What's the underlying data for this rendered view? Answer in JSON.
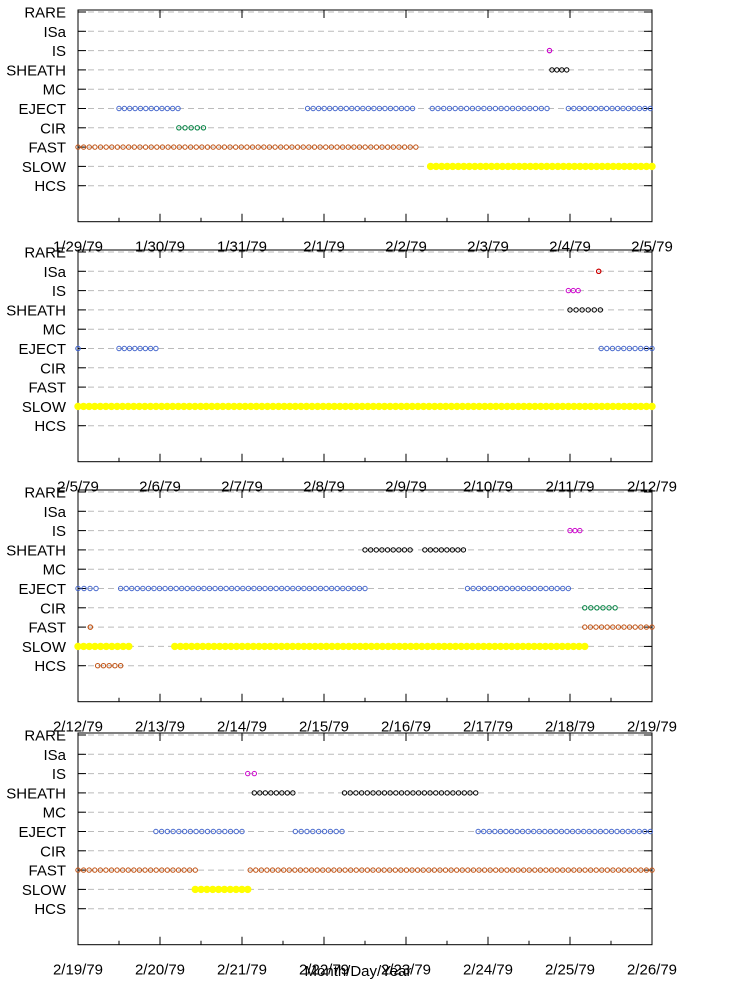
{
  "chart_data": {
    "type": "scatter",
    "xlabel": "Month/Day/Year",
    "categories": [
      "HCS",
      "SLOW",
      "FAST",
      "CIR",
      "EJECT",
      "MC",
      "SHEATH",
      "IS",
      "ISa",
      "RARE"
    ],
    "series_colors": {
      "IS": "#cc00cc",
      "ISa": "#cc0000",
      "SHEATH": "#000000",
      "EJECT": "#4466cc",
      "CIR": "#008040",
      "FAST": "#c05010",
      "SLOW": "#ffff00",
      "HCS": "#c05010"
    },
    "grid": "dashed horizontal",
    "panels": [
      {
        "xlim": [
          0,
          7
        ],
        "tick_labels": [
          "1/29/79",
          "1/30/79",
          "1/31/79",
          "2/1/79",
          "2/2/79",
          "2/3/79",
          "2/4/79",
          "2/5/79"
        ],
        "segments": [
          {
            "category": "IS",
            "start": 5.75,
            "end": 5.75
          },
          {
            "category": "SHEATH",
            "start": 5.78,
            "end": 5.96
          },
          {
            "category": "EJECT",
            "start": 0.5,
            "end": 1.22
          },
          {
            "category": "EJECT",
            "start": 2.8,
            "end": 4.08
          },
          {
            "category": "EJECT",
            "start": 4.32,
            "end": 5.72
          },
          {
            "category": "EJECT",
            "start": 5.98,
            "end": 6.98
          },
          {
            "category": "CIR",
            "start": 1.23,
            "end": 1.53
          },
          {
            "category": "FAST",
            "start": 0.0,
            "end": 4.12
          },
          {
            "category": "SLOW",
            "start": 4.3,
            "end": 7.0
          }
        ]
      },
      {
        "xlim": [
          0,
          7
        ],
        "tick_labels": [
          "2/5/79",
          "2/6/79",
          "2/7/79",
          "2/8/79",
          "2/9/79",
          "2/10/79",
          "2/11/79",
          "2/12/79"
        ],
        "segments": [
          {
            "category": "ISa",
            "start": 6.35,
            "end": 6.35
          },
          {
            "category": "IS",
            "start": 5.98,
            "end": 6.1
          },
          {
            "category": "SHEATH",
            "start": 6.0,
            "end": 6.37
          },
          {
            "category": "EJECT",
            "start": 0.0,
            "end": 0.0
          },
          {
            "category": "EJECT",
            "start": 0.5,
            "end": 0.95
          },
          {
            "category": "EJECT",
            "start": 6.38,
            "end": 7.0
          },
          {
            "category": "SLOW",
            "start": 0.0,
            "end": 7.0
          }
        ]
      },
      {
        "xlim": [
          0,
          7
        ],
        "tick_labels": [
          "2/12/79",
          "2/13/79",
          "2/14/79",
          "2/15/79",
          "2/16/79",
          "2/17/79",
          "2/18/79",
          "2/19/79"
        ],
        "segments": [
          {
            "category": "IS",
            "start": 6.0,
            "end": 6.12
          },
          {
            "category": "SHEATH",
            "start": 3.5,
            "end": 4.05
          },
          {
            "category": "SHEATH",
            "start": 4.23,
            "end": 4.7
          },
          {
            "category": "EJECT",
            "start": 0.0,
            "end": 0.22
          },
          {
            "category": "EJECT",
            "start": 0.52,
            "end": 3.5
          },
          {
            "category": "EJECT",
            "start": 4.75,
            "end": 5.98
          },
          {
            "category": "CIR",
            "start": 6.18,
            "end": 6.55
          },
          {
            "category": "FAST",
            "start": 0.15,
            "end": 0.15
          },
          {
            "category": "FAST",
            "start": 6.18,
            "end": 7.0
          },
          {
            "category": "SLOW",
            "start": 0.0,
            "end": 0.62
          },
          {
            "category": "SLOW",
            "start": 1.18,
            "end": 6.18
          },
          {
            "category": "HCS",
            "start": 0.24,
            "end": 0.52
          }
        ]
      },
      {
        "xlim": [
          0,
          7
        ],
        "tick_labels": [
          "2/19/79",
          "2/20/79",
          "2/21/79",
          "2/22/79",
          "2/23/79",
          "2/24/79",
          "2/25/79",
          "2/26/79"
        ],
        "segments": [
          {
            "category": "IS",
            "start": 2.07,
            "end": 2.15
          },
          {
            "category": "SHEATH",
            "start": 2.15,
            "end": 2.62
          },
          {
            "category": "SHEATH",
            "start": 3.25,
            "end": 4.85
          },
          {
            "category": "EJECT",
            "start": 0.95,
            "end": 2.0
          },
          {
            "category": "EJECT",
            "start": 2.65,
            "end": 3.22
          },
          {
            "category": "EJECT",
            "start": 4.88,
            "end": 6.98
          },
          {
            "category": "FAST",
            "start": 0.0,
            "end": 1.43
          },
          {
            "category": "FAST",
            "start": 2.1,
            "end": 7.0
          },
          {
            "category": "SLOW",
            "start": 1.43,
            "end": 2.07
          }
        ]
      }
    ]
  }
}
